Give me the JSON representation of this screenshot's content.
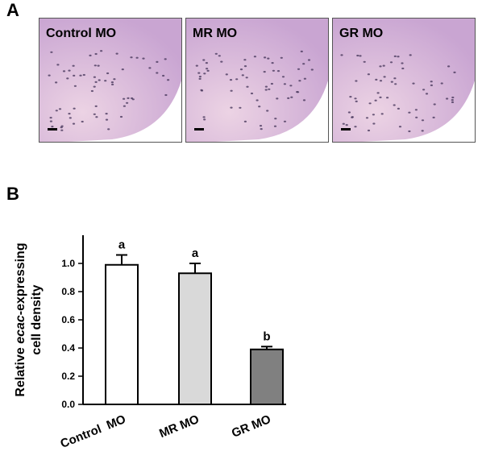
{
  "figure": {
    "panel_a_letter": "A",
    "panel_b_letter": "B",
    "images": [
      {
        "label": "Control MO"
      },
      {
        "label": "MR MO"
      },
      {
        "label": "GR MO"
      }
    ]
  },
  "colors": {
    "tissue_light": "#ecd3e4",
    "tissue_dark": "#c9a5d2",
    "cell_dot": "#4a3a5e",
    "bar_control": "#ffffff",
    "bar_mr": "#d9d9d9",
    "bar_gr": "#808080"
  },
  "chart_data": {
    "type": "bar",
    "title": "",
    "xlabel": "",
    "ylabel_line1_pre": "Relative ",
    "ylabel_line1_italic": "ecac",
    "ylabel_line1_post": "-expressing",
    "ylabel_line2": "cell density",
    "ylim": [
      0.0,
      1.2
    ],
    "yticks": [
      "0.0",
      "0.2",
      "0.4",
      "0.6",
      "0.8",
      "1.0"
    ],
    "ytick_values": [
      0.0,
      0.2,
      0.4,
      0.6,
      0.8,
      1.0
    ],
    "categories": [
      "Control  MO",
      "MR MO",
      "GR MO"
    ],
    "values": [
      0.99,
      0.93,
      0.39
    ],
    "errors": [
      0.07,
      0.07,
      0.02
    ],
    "significance": [
      "a",
      "a",
      "b"
    ],
    "grid": false
  }
}
